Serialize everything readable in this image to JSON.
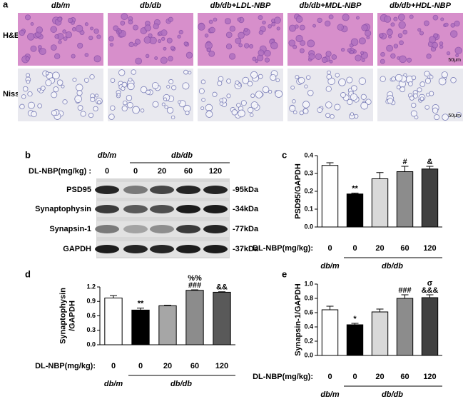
{
  "panel_a": {
    "label": "a",
    "columns": [
      "db/m",
      "db/db",
      "db/db+LDL-NBP",
      "db/db+MDL-NBP",
      "db/db+HDL-NBP"
    ],
    "rows": [
      "H&E",
      "Nissl"
    ],
    "scale_bar": "50μm"
  },
  "panel_b": {
    "label": "b",
    "group_labels": [
      "db/m",
      "db/db"
    ],
    "dose_label": "DL-NBP(mg/kg) :",
    "doses": [
      "0",
      "0",
      "20",
      "60",
      "120"
    ],
    "proteins": [
      "PSD95",
      "Synaptophysin",
      "Synapsin-1",
      "GAPDH"
    ],
    "sizes": [
      "-95kDa",
      "-34kDa",
      "-77kDa",
      "-37kDa"
    ]
  },
  "chart_data": [
    {
      "type": "bar",
      "panel": "c",
      "ylabel": "PSD95/GAPDH",
      "x_title": "DL-NBP(mg/kg):",
      "categories": [
        "0",
        "0",
        "20",
        "60",
        "120"
      ],
      "group_labels": [
        "db/m",
        "db/db"
      ],
      "values": [
        0.345,
        0.185,
        0.27,
        0.31,
        0.325
      ],
      "errors": [
        0.015,
        0.005,
        0.035,
        0.03,
        0.015
      ],
      "colors": [
        "#ffffff",
        "#000000",
        "#d9d9d9",
        "#8c8c8c",
        "#404040"
      ],
      "annotations": [
        null,
        "**",
        null,
        "#",
        "&"
      ],
      "ylim": [
        0,
        0.4
      ],
      "yticks": [
        {
          "value": 0,
          "label": "0.0"
        },
        0.1,
        0.2,
        0.3,
        0.4
      ]
    },
    {
      "type": "bar",
      "panel": "d",
      "ylabel": [
        "Synaptophysin",
        "/GAPDH"
      ],
      "x_title": "DL-NBP(mg/kg):",
      "categories": [
        "0",
        "0",
        "20",
        "60",
        "120"
      ],
      "group_labels": [
        "db/m",
        "db/db"
      ],
      "values": [
        0.97,
        0.72,
        0.81,
        1.13,
        1.09
      ],
      "errors": [
        0.05,
        0.04,
        0.01,
        0.01,
        0.01
      ],
      "colors": [
        "#ffffff",
        "#000000",
        "#a6a6a6",
        "#8c8c8c",
        "#595959"
      ],
      "annotations": [
        null,
        "**",
        null,
        [
          "###",
          "%%"
        ],
        "&&"
      ],
      "ylim": [
        0,
        1.2
      ],
      "yticks": [
        {
          "value": 0,
          "label": "0.0"
        },
        0.3,
        0.6,
        0.9,
        1.2
      ]
    },
    {
      "type": "bar",
      "panel": "e",
      "ylabel": "Synapsin-1/GAPDH",
      "x_title": "DL-NBP(mg/kg):",
      "categories": [
        "0",
        "0",
        "20",
        "60",
        "120"
      ],
      "group_labels": [
        "db/m",
        "db/db"
      ],
      "values": [
        0.64,
        0.43,
        0.61,
        0.8,
        0.81
      ],
      "errors": [
        0.05,
        0.02,
        0.04,
        0.05,
        0.04
      ],
      "colors": [
        "#ffffff",
        "#000000",
        "#d9d9d9",
        "#8c8c8c",
        "#404040"
      ],
      "annotations": [
        null,
        "*",
        null,
        "###",
        [
          "&&&",
          "σ"
        ]
      ],
      "ylim": [
        0,
        1
      ],
      "yticks": [
        {
          "value": 0,
          "label": "0.0"
        },
        0.2,
        0.4,
        0.6,
        0.8,
        {
          "value": 1,
          "label": "1.0"
        }
      ]
    }
  ]
}
